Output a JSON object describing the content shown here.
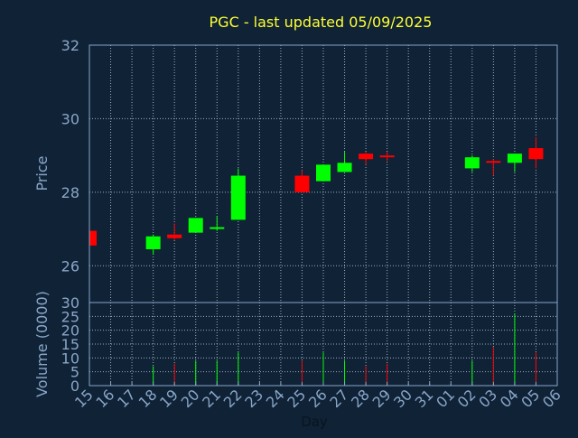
{
  "colors": {
    "background": "#0f2236",
    "axis": "#8aa6c8",
    "title": "#ffff33",
    "grid": "#b8c6d6",
    "up": "#00ff00",
    "down": "#ff0000"
  },
  "chart_data": {
    "type": "candlestick",
    "title": "PGC - last updated 05/09/2025",
    "xlabel": "Day",
    "grid": true,
    "categories": [
      "15",
      "16",
      "17",
      "18",
      "19",
      "20",
      "21",
      "22",
      "23",
      "24",
      "25",
      "26",
      "27",
      "28",
      "29",
      "30",
      "31",
      "01",
      "02",
      "03",
      "04",
      "05",
      "06"
    ],
    "price_panel": {
      "ylabel": "Price",
      "ylim": [
        25,
        32
      ],
      "yticks": [
        26,
        28,
        30,
        32
      ],
      "candles": [
        {
          "day": "15",
          "open": 26.95,
          "close": 26.55,
          "high": 26.95,
          "low": 26.55
        },
        {
          "day": "18",
          "open": 26.45,
          "close": 26.8,
          "high": 26.85,
          "low": 26.3
        },
        {
          "day": "19",
          "open": 26.85,
          "close": 26.75,
          "high": 27.15,
          "low": 26.7
        },
        {
          "day": "20",
          "open": 26.9,
          "close": 27.3,
          "high": 27.3,
          "low": 26.9
        },
        {
          "day": "21",
          "open": 27.0,
          "close": 27.05,
          "high": 27.35,
          "low": 26.95
        },
        {
          "day": "22",
          "open": 27.25,
          "close": 28.45,
          "high": 28.65,
          "low": 27.25
        },
        {
          "day": "25",
          "open": 28.45,
          "close": 28.0,
          "high": 28.6,
          "low": 28.0
        },
        {
          "day": "26",
          "open": 28.3,
          "close": 28.75,
          "high": 28.75,
          "low": 28.3
        },
        {
          "day": "27",
          "open": 28.55,
          "close": 28.8,
          "high": 29.1,
          "low": 28.55
        },
        {
          "day": "28",
          "open": 29.05,
          "close": 28.9,
          "high": 29.1,
          "low": 28.75
        },
        {
          "day": "29",
          "open": 29.0,
          "close": 28.95,
          "high": 29.1,
          "low": 28.85
        },
        {
          "day": "02",
          "open": 28.65,
          "close": 28.95,
          "high": 29.0,
          "low": 28.55
        },
        {
          "day": "03",
          "open": 28.85,
          "close": 28.8,
          "high": 28.9,
          "low": 28.45
        },
        {
          "day": "04",
          "open": 28.8,
          "close": 29.05,
          "high": 29.05,
          "low": 28.55
        },
        {
          "day": "05",
          "open": 29.2,
          "close": 28.9,
          "high": 29.5,
          "low": 28.65
        }
      ]
    },
    "volume_panel": {
      "ylabel": "Volume (0000)",
      "ylim": [
        0,
        30
      ],
      "yticks": [
        0,
        5,
        10,
        15,
        20,
        25,
        30
      ],
      "bars": [
        {
          "day": "18",
          "value": 7,
          "direction": "up"
        },
        {
          "day": "19",
          "value": 8,
          "direction": "down"
        },
        {
          "day": "20",
          "value": 9,
          "direction": "up"
        },
        {
          "day": "21",
          "value": 9,
          "direction": "up"
        },
        {
          "day": "22",
          "value": 12,
          "direction": "up"
        },
        {
          "day": "25",
          "value": 9,
          "direction": "down"
        },
        {
          "day": "26",
          "value": 12,
          "direction": "up"
        },
        {
          "day": "27",
          "value": 9,
          "direction": "up"
        },
        {
          "day": "28",
          "value": 7,
          "direction": "down"
        },
        {
          "day": "29",
          "value": 8,
          "direction": "down"
        },
        {
          "day": "02",
          "value": 9,
          "direction": "up"
        },
        {
          "day": "03",
          "value": 14,
          "direction": "down"
        },
        {
          "day": "04",
          "value": 26,
          "direction": "up"
        },
        {
          "day": "05",
          "value": 12,
          "direction": "down"
        }
      ]
    }
  }
}
